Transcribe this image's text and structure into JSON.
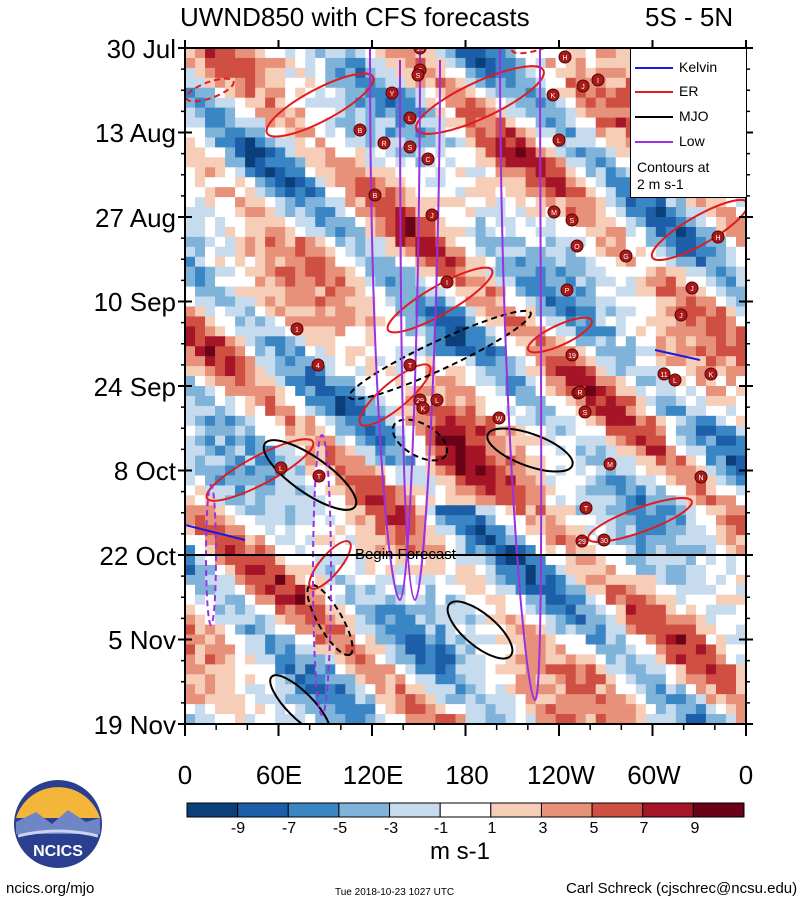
{
  "header": {
    "title": "UWND850 with CFS forecasts",
    "region": "5S - 5N"
  },
  "chart_data": {
    "type": "heatmap",
    "title": "UWND850 with CFS forecasts",
    "region_label": "5S - 5N",
    "x_axis": {
      "ticks": [
        "0",
        "60E",
        "120E",
        "180",
        "120W",
        "60W",
        "0"
      ],
      "range_deg_east": [
        0,
        360
      ]
    },
    "y_axis": {
      "ticks": [
        "30 Jul",
        "13 Aug",
        "27 Aug",
        "10 Sep",
        "24 Sep",
        "8 Oct",
        "22 Oct",
        "5 Nov",
        "19 Nov"
      ],
      "direction": "time increases downward"
    },
    "forecast_marker": {
      "label": "Begin Forecast",
      "date": "22 Oct"
    },
    "colorbar": {
      "units": "m s-1",
      "tick_labels": [
        "-9",
        "-7",
        "-5",
        "-3",
        "-1",
        "1",
        "3",
        "5",
        "7",
        "9"
      ],
      "colors": [
        "#0b3f7a",
        "#1c5fa8",
        "#3a86c4",
        "#7fb3d9",
        "#c6dcee",
        "#ffffff",
        "#f6cdb7",
        "#e8917a",
        "#cf4f43",
        "#a51427",
        "#6a0218"
      ]
    },
    "legend": [
      {
        "name": "Kelvin",
        "color": "#1a1adc",
        "dash": "solid"
      },
      {
        "name": "ER",
        "color": "#e41a1c",
        "dash": "solid"
      },
      {
        "name": "MJO",
        "color": "#000000",
        "dash": "solid"
      },
      {
        "name": "Low",
        "color": "#9b30e0",
        "dash": "solid"
      }
    ],
    "contour_note": [
      "Contours at",
      "2 m s-1"
    ],
    "storm_markers": [
      "16",
      "S",
      "Y",
      "B",
      "L",
      "R",
      "S",
      "C",
      "B",
      "J",
      "S",
      "H",
      "K",
      "J",
      "I",
      "L",
      "M",
      "S",
      "O",
      "G",
      "H",
      "P",
      "J",
      "J",
      "19",
      "R",
      "S",
      "W",
      "L",
      "I",
      "29",
      "K",
      "T",
      "1",
      "4",
      "L",
      "T",
      "M",
      "N",
      "T",
      "11",
      "L",
      "K",
      "R",
      "29",
      "30"
    ]
  },
  "footer": {
    "left": "ncics.org/mjo",
    "middle": "Tue 2018-10-23 1027 UTC",
    "right": "Carl Schreck (cjschrec@ncsu.edu)",
    "logo_text": "NCICS"
  }
}
